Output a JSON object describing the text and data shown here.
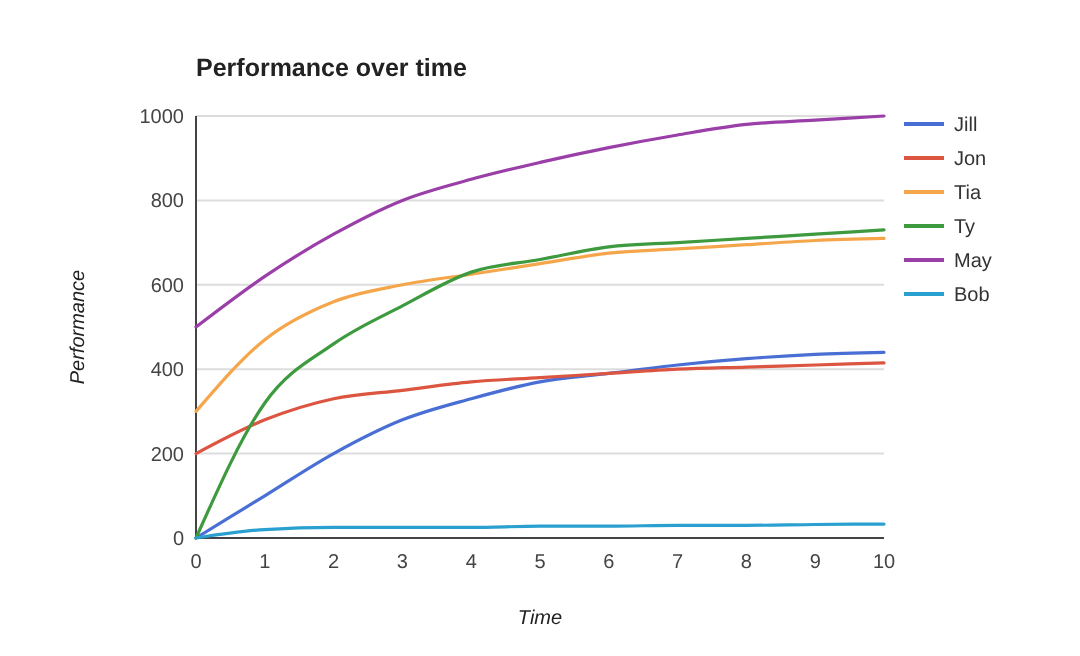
{
  "chart_data": {
    "type": "line",
    "title": "Performance over time",
    "xlabel": "Time",
    "ylabel": "Performance",
    "x": [
      0,
      1,
      2,
      3,
      4,
      5,
      6,
      7,
      8,
      9,
      10
    ],
    "xlim": [
      0,
      10
    ],
    "xticks": [
      0,
      1,
      2,
      3,
      4,
      5,
      6,
      7,
      8,
      9,
      10
    ],
    "ylim": [
      0,
      1000
    ],
    "yticks": [
      0,
      200,
      400,
      600,
      800,
      1000
    ],
    "grid": "y",
    "legend": "right",
    "marker": "none",
    "line_style": "solid",
    "series": [
      {
        "name": "Jill",
        "color": "#4a6fd4",
        "values": [
          0,
          100,
          200,
          280,
          330,
          370,
          390,
          410,
          425,
          435,
          440
        ]
      },
      {
        "name": "Jon",
        "color": "#dc5540",
        "values": [
          200,
          280,
          330,
          350,
          370,
          380,
          390,
          400,
          405,
          410,
          415
        ]
      },
      {
        "name": "Tia",
        "color": "#f5a64a",
        "values": [
          300,
          470,
          560,
          600,
          625,
          650,
          675,
          685,
          695,
          705,
          710
        ]
      },
      {
        "name": "Ty",
        "color": "#3e9a3e",
        "values": [
          0,
          320,
          460,
          550,
          630,
          660,
          690,
          700,
          710,
          720,
          730
        ]
      },
      {
        "name": "May",
        "color": "#9a3fa8",
        "values": [
          500,
          620,
          720,
          800,
          850,
          890,
          925,
          955,
          980,
          990,
          1000
        ]
      },
      {
        "name": "Bob",
        "color": "#2aa0d0",
        "values": [
          0,
          20,
          25,
          25,
          25,
          28,
          28,
          30,
          30,
          32,
          33
        ]
      }
    ]
  }
}
